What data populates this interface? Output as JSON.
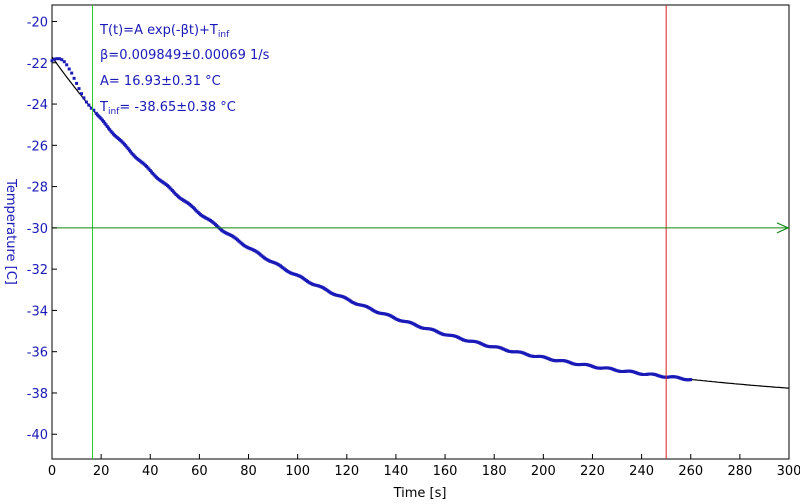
{
  "chart_data": {
    "type": "scatter",
    "title": "",
    "xlabel": "Time [s]",
    "ylabel": "Temperature [C]",
    "xlim": [
      0,
      300
    ],
    "ylim": [
      -41.2,
      -19.2
    ],
    "x_ticks": [
      0,
      20,
      40,
      60,
      80,
      100,
      120,
      140,
      160,
      180,
      200,
      220,
      240,
      260,
      280,
      300
    ],
    "y_ticks": [
      -20,
      -22,
      -24,
      -26,
      -28,
      -30,
      -32,
      -34,
      -36,
      -38,
      -40
    ],
    "grid": false,
    "annotations": {
      "formula_main": "T(t)=A exp(-βt)+T",
      "formula_sub": "inf",
      "beta": "β=0.009849±0.00069 1/s",
      "amplitude": "A= 16.93±0.31 °C",
      "tinf_prefix": "T",
      "tinf_sub": "inf",
      "tinf_value": "= -38.65±0.38 °C"
    },
    "fit": {
      "A": 16.93,
      "beta": 0.009849,
      "T_inf": -38.65,
      "x_range": [
        0,
        300
      ],
      "color": "#000000"
    },
    "series": [
      {
        "color": "#1a1ab8",
        "x_range": [
          0,
          260
        ],
        "initial_points": [
          [
            0,
            -21.9
          ],
          [
            1,
            -21.82
          ],
          [
            2,
            -21.8
          ],
          [
            3,
            -21.8
          ],
          [
            4,
            -21.85
          ],
          [
            5,
            -21.95
          ],
          [
            6,
            -22.1
          ],
          [
            7,
            -22.3
          ],
          [
            8,
            -22.5
          ],
          [
            9,
            -22.75
          ],
          [
            10,
            -23.0
          ],
          [
            11,
            -23.25
          ],
          [
            12,
            -23.5
          ],
          [
            13,
            -23.7
          ],
          [
            14,
            -23.9
          ],
          [
            15,
            -24.05
          ],
          [
            16,
            -24.2
          ],
          [
            17,
            -24.3
          ],
          [
            18,
            -24.45
          ]
        ]
      }
    ],
    "markers": [
      {
        "type": "vertical",
        "x": 16.5,
        "color": "#22cc22"
      },
      {
        "type": "vertical",
        "x": 250,
        "color": "#dd2222"
      },
      {
        "type": "horizontal",
        "y": -30,
        "color": "#118811",
        "arrow": true
      }
    ],
    "colors": {
      "data": "#1a1ab8",
      "fit": "#000000",
      "start_line": "#22cc22",
      "end_line": "#dd2222",
      "level_line": "#118811",
      "axis": "#000000",
      "ylabel": "#1a1ab8"
    }
  }
}
